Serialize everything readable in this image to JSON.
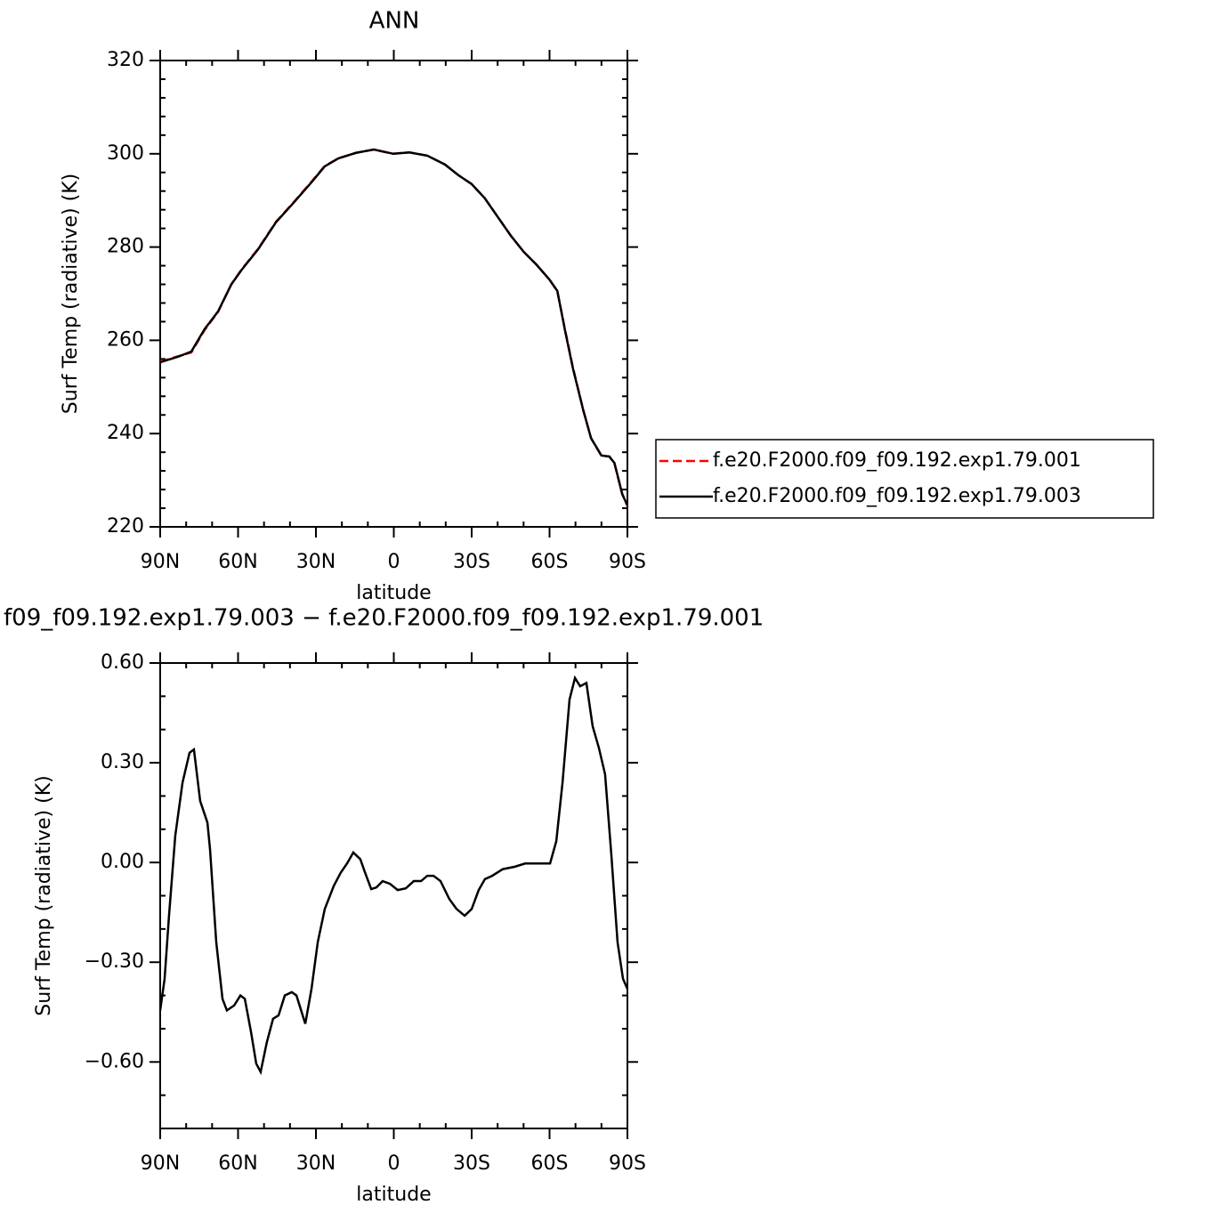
{
  "chart_data": [
    {
      "type": "line",
      "title": "ANN",
      "xlabel": "latitude",
      "ylabel": "Surf Temp (radiative) (K)",
      "x": [
        90,
        83,
        78,
        72.9,
        67.7,
        62.6,
        58.5,
        52.3,
        45.4,
        38.6,
        31.7,
        26.6,
        21.4,
        14.6,
        7.7,
        0.2,
        -6,
        -12.9,
        -19.7,
        -24.9,
        -30,
        -35,
        -40,
        -45,
        -50,
        -55,
        -60,
        -63,
        -66,
        -69,
        -73,
        -76,
        -80,
        -83,
        -85,
        -88,
        -90
      ],
      "series": [
        {
          "name": "f.e20.F2000.f09_f09.192.exp1.79.001",
          "color": "#ff0000",
          "dash": true,
          "values": [
            255.4,
            256.6,
            257.4,
            262.2,
            266.1,
            272,
            275.3,
            279.6,
            285.4,
            289.6,
            294,
            297.4,
            299,
            300.2,
            300.9,
            300,
            300.3,
            299.6,
            297.7,
            295.4,
            293.5,
            290.5,
            286.5,
            282.5,
            279,
            276.2,
            273,
            270.5,
            262.2,
            254.2,
            245,
            239,
            235.2,
            235.1,
            233.6,
            227.1,
            224.5
          ]
        },
        {
          "name": "f.e20.F2000.f09_f09.192.exp1.79.003",
          "color": "#000000",
          "dash": false,
          "values": [
            255.3,
            256.5,
            257.6,
            262.4,
            266.2,
            272,
            275.2,
            279.5,
            285.3,
            289.5,
            293.9,
            297.3,
            299,
            300.2,
            300.9,
            300,
            300.3,
            299.6,
            297.7,
            295.4,
            293.5,
            290.5,
            286.5,
            282.5,
            279,
            276.2,
            273,
            270.6,
            262,
            254,
            245,
            239,
            235.3,
            235.1,
            233.7,
            227,
            224.6
          ]
        }
      ],
      "xlim": [
        90,
        -90
      ],
      "xticks": [
        {
          "value": 90,
          "label": "90N"
        },
        {
          "value": 60,
          "label": "60N"
        },
        {
          "value": 30,
          "label": "30N"
        },
        0,
        {
          "value": -30,
          "label": "30S"
        },
        {
          "value": -60,
          "label": "60S"
        },
        {
          "value": -90,
          "label": "90S"
        }
      ],
      "ylim": [
        220,
        320
      ],
      "yticks": [
        220,
        240,
        260,
        280,
        300,
        320
      ],
      "legend": "right"
    },
    {
      "type": "line",
      "title": "f09_f09.192.exp1.79.003 − f.e20.F2000.f09_f09.192.exp1.79.001",
      "xlabel": "latitude",
      "ylabel": "Surf Temp (radiative) (K)",
      "x": [
        90,
        88.3,
        86.6,
        84.2,
        81.4,
        78.7,
        77,
        74.6,
        71.8,
        70.8,
        68.4,
        66,
        64.3,
        61.5,
        59.1,
        57.4,
        55,
        53,
        51.3,
        48.9,
        46.5,
        44.4,
        42,
        39.3,
        37.5,
        34.1,
        31.7,
        29.3,
        26.6,
        23.1,
        20.4,
        18,
        15.6,
        12.9,
        11.1,
        8.7,
        6.7,
        4.3,
        1.5,
        -1.5,
        -4.6,
        -7.7,
        -10.5,
        -12.9,
        -15.3,
        -18,
        -21.4,
        -24.2,
        -27.3,
        -30,
        -32.7,
        -35.1,
        -37.9,
        -42,
        -46.5,
        -50.6,
        -55.7,
        -60.2,
        -62.6,
        -65,
        -67.7,
        -69.8,
        -71.8,
        -74.2,
        -76.6,
        -79,
        -81.4,
        -83.8,
        -86.2,
        -88.3,
        -90
      ],
      "series": [
        {
          "color": "#000000",
          "dash": false,
          "values": [
            -0.445,
            -0.35,
            -0.16,
            0.08,
            0.24,
            0.33,
            0.34,
            0.185,
            0.12,
            0.04,
            -0.24,
            -0.41,
            -0.445,
            -0.43,
            -0.4,
            -0.41,
            -0.51,
            -0.605,
            -0.63,
            -0.54,
            -0.47,
            -0.46,
            -0.4,
            -0.39,
            -0.4,
            -0.485,
            -0.38,
            -0.24,
            -0.14,
            -0.07,
            -0.03,
            -0.003,
            0.03,
            0.01,
            -0.03,
            -0.08,
            -0.075,
            -0.056,
            -0.064,
            -0.083,
            -0.078,
            -0.056,
            -0.056,
            -0.04,
            -0.04,
            -0.056,
            -0.11,
            -0.14,
            -0.16,
            -0.14,
            -0.083,
            -0.05,
            -0.04,
            -0.02,
            -0.013,
            -0.003,
            -0.003,
            -0.003,
            0.064,
            0.24,
            0.49,
            0.555,
            0.53,
            0.54,
            0.41,
            0.345,
            0.265,
            0.024,
            -0.24,
            -0.35,
            -0.38
          ]
        }
      ],
      "xlim": [
        90,
        -90
      ],
      "xticks": [
        {
          "value": 90,
          "label": "90N"
        },
        {
          "value": 60,
          "label": "60N"
        },
        {
          "value": 30,
          "label": "30N"
        },
        0,
        {
          "value": -30,
          "label": "30S"
        },
        {
          "value": -60,
          "label": "60S"
        },
        {
          "value": -90,
          "label": "90S"
        }
      ],
      "ylim": [
        -0.8,
        0.6
      ],
      "yticks": [
        {
          "value": -0.6,
          "label": "−0.60"
        },
        {
          "value": -0.3,
          "label": "−0.30"
        },
        {
          "value": 0,
          "label": "0.00"
        },
        {
          "value": 0.3,
          "label": "0.30"
        },
        {
          "value": 0.6,
          "label": "0.60"
        }
      ]
    }
  ]
}
